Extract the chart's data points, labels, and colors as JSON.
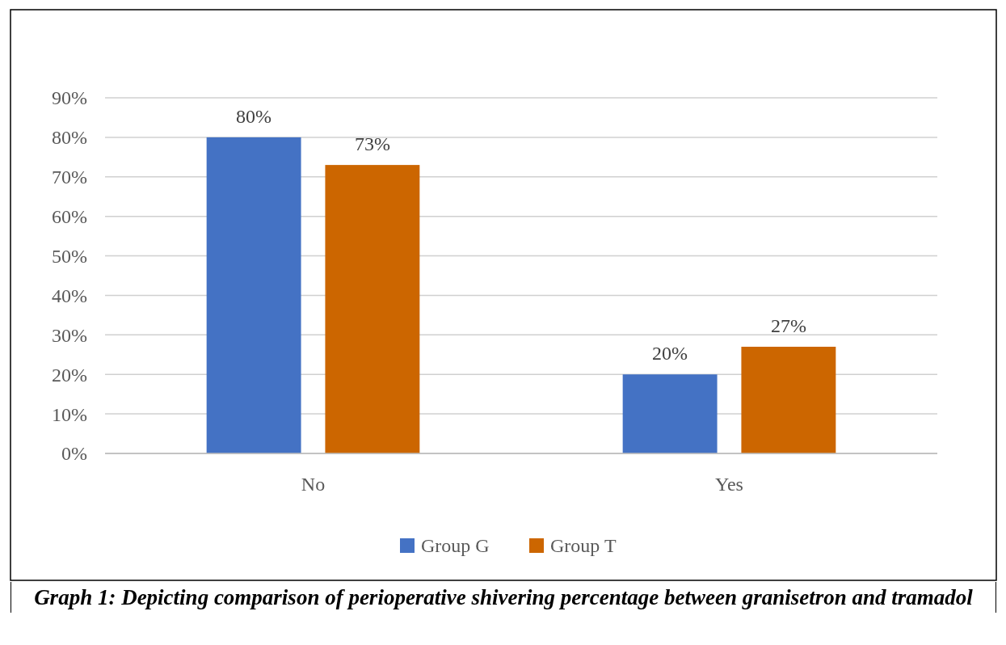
{
  "chart_data": {
    "type": "bar",
    "categories": [
      "No",
      "Yes"
    ],
    "series": [
      {
        "name": "Group G",
        "color": "#4472c4",
        "values": [
          80,
          20
        ],
        "value_labels": [
          "80%",
          "20%"
        ]
      },
      {
        "name": "Group T",
        "color": "#cc6600",
        "values": [
          73,
          27
        ],
        "value_labels": [
          "73%",
          "27%"
        ]
      }
    ],
    "ylim": [
      0,
      90
    ],
    "yticks": [
      {
        "value": 0,
        "label": "0%"
      },
      {
        "value": 10,
        "label": "10%"
      },
      {
        "value": 20,
        "label": "20%"
      },
      {
        "value": 30,
        "label": "30%"
      },
      {
        "value": 40,
        "label": "40%"
      },
      {
        "value": 50,
        "label": "50%"
      },
      {
        "value": 60,
        "label": "60%"
      },
      {
        "value": 70,
        "label": "70%"
      },
      {
        "value": 80,
        "label": "80%"
      },
      {
        "value": 90,
        "label": "90%"
      }
    ],
    "grid": "y",
    "legend": "bottom",
    "annotations": [
      "Graph 1: Depicting comparison of perioperative shivering percentage between granisetron and tramadol"
    ]
  }
}
